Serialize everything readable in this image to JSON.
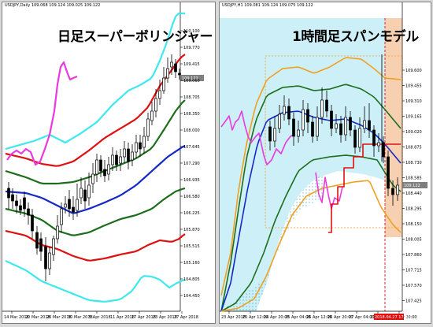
{
  "left_chart": {
    "symbol_label": "USDJPY,Daily  109.068 109.124 109.025 109.122",
    "title": "日足スーパーボリンジャー",
    "current_price_tag": "109.122",
    "y_axis_labels": [
      "110.100",
      "109.770",
      "109.415",
      "109.060",
      "108.705",
      "108.350",
      "108.000",
      "107.645",
      "107.290",
      "106.935",
      "106.580",
      "106.225",
      "105.870",
      "105.515",
      "105.160",
      "104.805",
      "104.450"
    ],
    "x_axis_labels": [
      "14 Mar 2018",
      "20 Mar 2018",
      "26 Mar 2018",
      "30 Mar 2018",
      "5 Apr 2018",
      "11 Apr 2018",
      "17 Apr 2018",
      "23 Apr 2018",
      "27 Apr 2018"
    ],
    "colors": {
      "cyan": "#3ee8ee",
      "red": "#e01010",
      "green": "#1c6e1c",
      "blue": "#1428c8",
      "magenta": "#e83ae0"
    }
  },
  "right_chart": {
    "symbol_label": "USDJPY,H1  109.081 109.124 109.075 109.122",
    "title": "1時間足スパンモデル",
    "current_price_tag": "109.122",
    "time_tag": "2018.04.27 17:00",
    "y_axis_labels": [
      "109.600",
      "109.455",
      "109.310",
      "109.165",
      "109.020",
      "108.875",
      "108.730",
      "108.585",
      "108.440",
      "108.295",
      "108.150",
      "108.005",
      "107.860",
      "107.715",
      "107.570",
      "107.425"
    ],
    "x_axis_labels": [
      "23 Apr 2018",
      "25 Apr 12:00",
      "24 Apr 20:00",
      "25 Apr 04:00",
      "26 Apr 12:00",
      "26 Apr 20:00",
      "27 Apr 04:00",
      "27 Apr 12:00",
      "27 Apr 20:00"
    ],
    "colors": {
      "orange": "#f0a020",
      "green": "#1c6e1c",
      "blue": "#1428c8",
      "red": "#e01010",
      "magenta": "#e83ae0",
      "span_fill": "#cdf0f8",
      "highlight": "#f6c8a4"
    }
  }
}
